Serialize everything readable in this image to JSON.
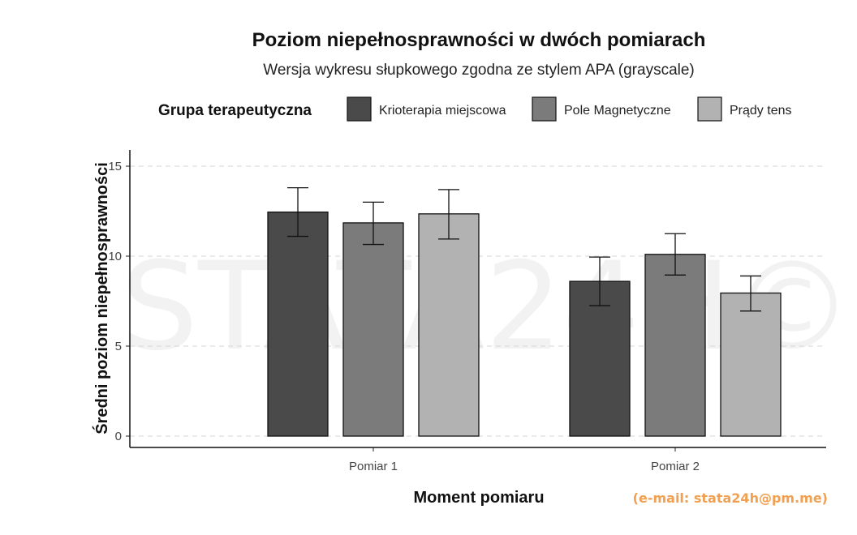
{
  "chart_data": {
    "type": "bar",
    "title": "Poziom niepełnosprawności w dwóch pomiarach",
    "subtitle": "Wersja wykresu słupkowego zgodna ze stylem APA (grayscale)",
    "xlabel": "Moment pomiaru",
    "ylabel": "Średni poziom niepełnosprawności",
    "ylim": [
      0,
      16
    ],
    "yticks": [
      0,
      5,
      10,
      15
    ],
    "grid": "horizontal-dashed",
    "legend_title": "Grupa terapeutyczna",
    "legend_position": "top",
    "categories": [
      "Pomiar 1",
      "Pomiar 2"
    ],
    "series": [
      {
        "name": "Krioterapia miejscowa",
        "color": "#4a4a4a",
        "values": [
          12.45,
          8.6
        ],
        "error_low": [
          11.1,
          7.25
        ],
        "error_high": [
          13.8,
          9.95
        ]
      },
      {
        "name": "Pole Magnetyczne",
        "color": "#7b7b7b",
        "values": [
          11.85,
          10.1
        ],
        "error_low": [
          10.65,
          8.95
        ],
        "error_high": [
          13.0,
          11.25
        ]
      },
      {
        "name": "Prądy tens",
        "color": "#b2b2b2",
        "values": [
          12.35,
          7.95
        ],
        "error_low": [
          10.95,
          6.95
        ],
        "error_high": [
          13.7,
          8.9
        ]
      }
    ]
  },
  "watermark": "STATA24H©",
  "footer_email": "(e-mail: stata24h@pm.me)"
}
